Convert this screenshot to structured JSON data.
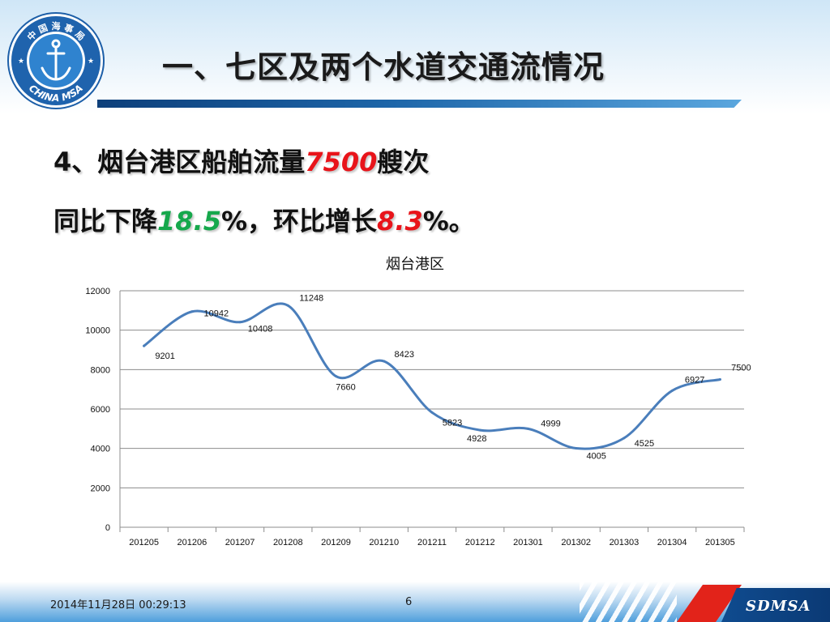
{
  "slide": {
    "title": "一、七区及两个水道交通流情况",
    "logo": {
      "text_top": "中 国 海 事 局",
      "text_bottom": "CHINA MSA",
      "icon": "anchor-icon"
    },
    "headline1": {
      "prefix": "4、烟台港区船舶流量",
      "value": "7500",
      "suffix": "艘次"
    },
    "headline2": {
      "prefix": "同比下降",
      "value1": "18.5",
      "mid": "%，环比增长",
      "value2": "8.3",
      "suffix": "%。"
    },
    "footer": {
      "date": "2014年11月28日  00:29:13",
      "page": "6",
      "brand": "SDMSA"
    },
    "colors": {
      "line": "#4a7ebb",
      "red_highlight": "#e8141a",
      "green_highlight": "#16a84c",
      "gridline": "#8c8c8c"
    }
  },
  "chart_data": {
    "type": "line",
    "title": "烟台港区",
    "categories": [
      "201205",
      "201206",
      "201207",
      "201208",
      "201209",
      "201210",
      "201211",
      "201212",
      "201301",
      "201302",
      "201303",
      "201304",
      "201305"
    ],
    "values": [
      9201,
      10942,
      10408,
      11248,
      7660,
      8423,
      5823,
      4928,
      4999,
      4005,
      4525,
      6927,
      7500
    ],
    "ylim": [
      0,
      12000
    ],
    "yticks": [
      0,
      2000,
      4000,
      6000,
      8000,
      10000,
      12000
    ],
    "xlabel": "",
    "ylabel": "",
    "grid": true,
    "smooth": true,
    "data_labels": true,
    "legend": "none"
  }
}
